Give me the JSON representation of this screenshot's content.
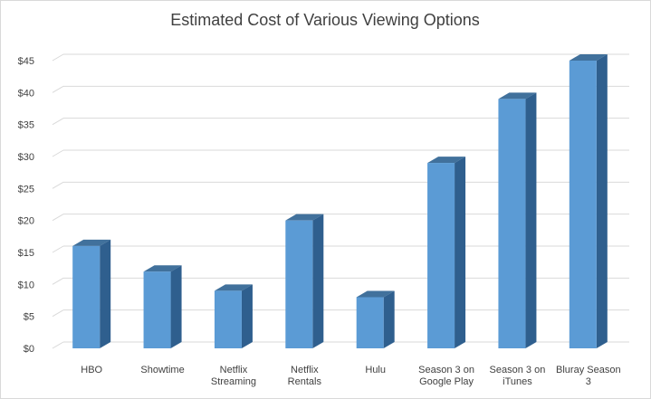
{
  "chart_data": {
    "type": "bar",
    "title": "Estimated Cost of Various Viewing Options",
    "xlabel": "",
    "ylabel": "",
    "ylim": [
      0,
      45
    ],
    "y_ticks": [
      "$0",
      "$5",
      "$10",
      "$15",
      "$20",
      "$25",
      "$30",
      "$35",
      "$40",
      "$45"
    ],
    "grid": true,
    "legend": "none",
    "categories": [
      [
        "HBO"
      ],
      [
        "Showtime"
      ],
      [
        "Netflix",
        "Streaming"
      ],
      [
        "Netflix",
        "Rentals"
      ],
      [
        "Hulu"
      ],
      [
        "Season 3 on",
        "Google Play"
      ],
      [
        "Season 3 on",
        "iTunes"
      ],
      [
        "Bluray Season",
        "3"
      ]
    ],
    "values": [
      16,
      12,
      9,
      20,
      8,
      29,
      39,
      45
    ],
    "colors": {
      "front": "#5B9BD5",
      "side": "#2F5F8E",
      "top": "#41719C",
      "grid": "#d9d9d9",
      "text": "#404040"
    }
  }
}
